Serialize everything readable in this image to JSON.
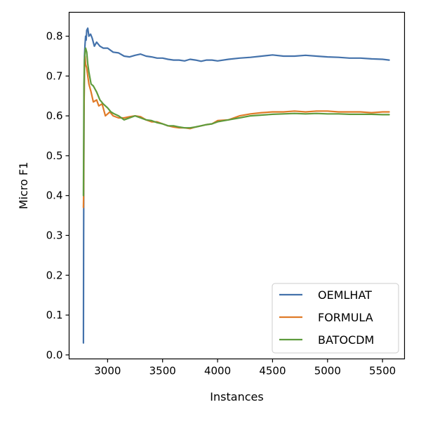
{
  "chart_data": {
    "type": "line",
    "xlabel": "Instances",
    "ylabel": "Micro F1",
    "xlim": [
      2650,
      5700
    ],
    "ylim": [
      -0.01,
      0.86
    ],
    "xticks": [
      3000,
      3500,
      4000,
      4500,
      5000,
      5500
    ],
    "yticks": [
      0.0,
      0.1,
      0.2,
      0.3,
      0.4,
      0.5,
      0.6,
      0.7,
      0.8
    ],
    "grid": false,
    "legend_position": "bottom-right",
    "series": [
      {
        "name": "OEMLHAT",
        "color": "#4472ab",
        "x": [
          2780,
          2782,
          2785,
          2790,
          2795,
          2800,
          2805,
          2810,
          2820,
          2830,
          2845,
          2860,
          2880,
          2900,
          2930,
          2960,
          3000,
          3050,
          3100,
          3150,
          3200,
          3250,
          3300,
          3350,
          3400,
          3450,
          3500,
          3550,
          3600,
          3650,
          3700,
          3750,
          3800,
          3850,
          3900,
          3950,
          4000,
          4100,
          4200,
          4300,
          4400,
          4500,
          4600,
          4700,
          4800,
          4900,
          5000,
          5100,
          5200,
          5300,
          5400,
          5500,
          5560
        ],
        "y": [
          0.03,
          0.3,
          0.6,
          0.75,
          0.78,
          0.8,
          0.79,
          0.815,
          0.82,
          0.8,
          0.805,
          0.795,
          0.775,
          0.785,
          0.775,
          0.77,
          0.77,
          0.76,
          0.758,
          0.75,
          0.748,
          0.752,
          0.755,
          0.75,
          0.748,
          0.745,
          0.745,
          0.742,
          0.74,
          0.74,
          0.738,
          0.742,
          0.74,
          0.737,
          0.74,
          0.74,
          0.738,
          0.742,
          0.745,
          0.747,
          0.75,
          0.753,
          0.75,
          0.75,
          0.752,
          0.75,
          0.748,
          0.747,
          0.745,
          0.745,
          0.743,
          0.742,
          0.74
        ]
      },
      {
        "name": "FORMULA",
        "color": "#e07b28",
        "x": [
          2780,
          2782,
          2785,
          2790,
          2795,
          2800,
          2810,
          2820,
          2830,
          2850,
          2870,
          2900,
          2920,
          2950,
          2980,
          3000,
          3020,
          3050,
          3100,
          3150,
          3200,
          3250,
          3300,
          3350,
          3400,
          3450,
          3500,
          3550,
          3600,
          3650,
          3700,
          3750,
          3800,
          3850,
          3900,
          3950,
          4000,
          4100,
          4200,
          4300,
          4400,
          4500,
          4600,
          4700,
          4800,
          4900,
          5000,
          5100,
          5200,
          5300,
          5400,
          5500,
          5560
        ],
        "y": [
          0.37,
          0.4,
          0.6,
          0.72,
          0.75,
          0.73,
          0.72,
          0.7,
          0.68,
          0.66,
          0.635,
          0.64,
          0.625,
          0.63,
          0.6,
          0.605,
          0.61,
          0.6,
          0.595,
          0.595,
          0.598,
          0.6,
          0.598,
          0.59,
          0.585,
          0.585,
          0.58,
          0.575,
          0.572,
          0.57,
          0.57,
          0.568,
          0.572,
          0.575,
          0.578,
          0.58,
          0.588,
          0.59,
          0.6,
          0.605,
          0.608,
          0.61,
          0.61,
          0.612,
          0.61,
          0.612,
          0.612,
          0.61,
          0.61,
          0.61,
          0.608,
          0.61,
          0.61
        ]
      },
      {
        "name": "BATOCDM",
        "color": "#5e9b3c",
        "x": [
          2780,
          2782,
          2785,
          2790,
          2795,
          2800,
          2810,
          2820,
          2830,
          2850,
          2870,
          2900,
          2930,
          2960,
          3000,
          3030,
          3060,
          3100,
          3150,
          3200,
          3250,
          3300,
          3350,
          3400,
          3450,
          3500,
          3550,
          3600,
          3650,
          3700,
          3750,
          3800,
          3850,
          3900,
          3950,
          4000,
          4100,
          4200,
          4300,
          4400,
          4500,
          4600,
          4700,
          4800,
          4900,
          5000,
          5100,
          5200,
          5300,
          5400,
          5500,
          5560
        ],
        "y": [
          0.4,
          0.5,
          0.68,
          0.74,
          0.76,
          0.77,
          0.76,
          0.73,
          0.71,
          0.68,
          0.675,
          0.66,
          0.64,
          0.63,
          0.62,
          0.61,
          0.605,
          0.6,
          0.59,
          0.595,
          0.6,
          0.595,
          0.59,
          0.588,
          0.583,
          0.58,
          0.575,
          0.575,
          0.572,
          0.57,
          0.57,
          0.572,
          0.575,
          0.578,
          0.58,
          0.585,
          0.59,
          0.595,
          0.6,
          0.602,
          0.604,
          0.605,
          0.606,
          0.605,
          0.606,
          0.605,
          0.605,
          0.604,
          0.604,
          0.604,
          0.603,
          0.603
        ]
      }
    ]
  }
}
